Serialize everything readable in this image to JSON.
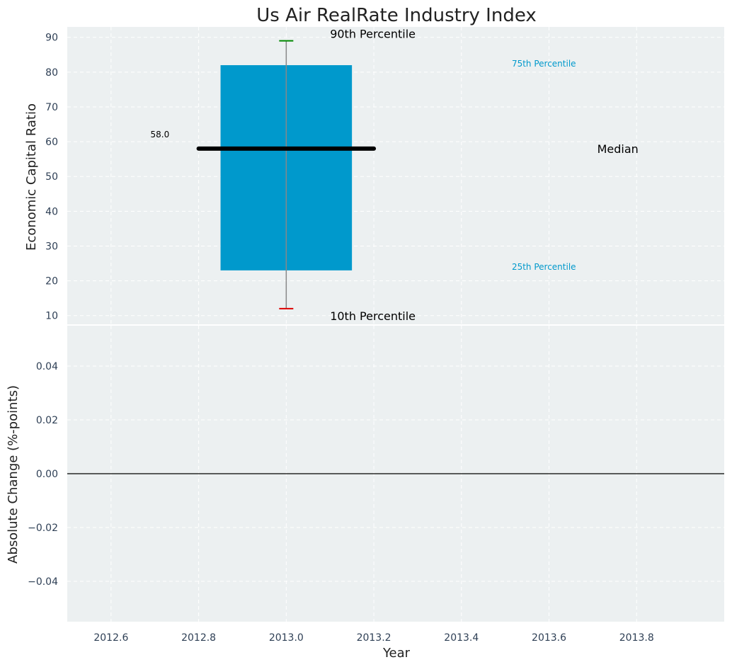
{
  "chart_data": {
    "type": "box",
    "title": "Us Air RealRate Industry Index",
    "xlabel": "Year",
    "top_panel": {
      "ylabel": "Economic Capital Ratio",
      "ylim": [
        7.5,
        93
      ],
      "yticks": [
        "10",
        "20",
        "30",
        "40",
        "50",
        "60",
        "70",
        "80",
        "90"
      ],
      "box": {
        "x": 2013.0,
        "p10": 12,
        "p25": 23,
        "median": 58,
        "p75": 82,
        "p90": 89
      },
      "median_value_label": "58.0",
      "annotations": {
        "p90": "90th Percentile",
        "p75": "75th Percentile",
        "median": "Median",
        "p25": "25th Percentile",
        "p10": "10th Percentile"
      }
    },
    "bottom_panel": {
      "ylabel": "Absolute Change (%-points)",
      "ylim": [
        -0.055,
        0.055
      ],
      "yticks": [
        "0.04",
        "0.02",
        "0.00",
        "−0.02",
        "−0.04"
      ],
      "zero_line": true
    },
    "xlim": [
      2012.5,
      2014.0
    ],
    "xticks": [
      "2012.6",
      "2012.8",
      "2013.0",
      "2013.2",
      "2013.4",
      "2013.6",
      "2013.8"
    ],
    "grid": true,
    "colors": {
      "background": "#ecf0f1",
      "box": "#0099cc",
      "median": "#000000",
      "whisker": "#888888",
      "p90_cap": "#008800",
      "p10_cap": "#dd0000",
      "percentile_label": "#0099cc"
    }
  }
}
